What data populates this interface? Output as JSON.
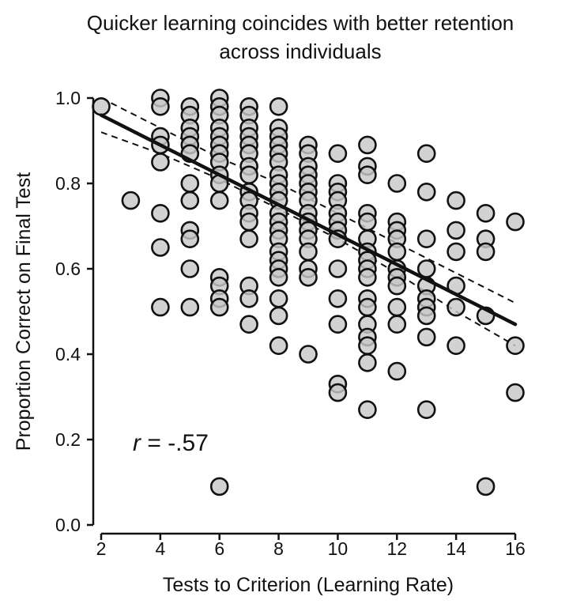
{
  "chart_data": {
    "type": "scatter",
    "title": [
      "Quicker learning coincides with better retention",
      "across individuals"
    ],
    "xlabel": "Tests to Criterion (Learning Rate)",
    "ylabel": "Proportion Correct on Final Test",
    "xlim": [
      2,
      16
    ],
    "ylim": [
      0,
      1.0
    ],
    "xticks": [
      2,
      4,
      6,
      8,
      10,
      12,
      14,
      16
    ],
    "yticks": [
      0.0,
      0.2,
      0.4,
      0.6,
      0.8,
      1.0
    ],
    "ytick_labels": [
      "0.0",
      "0.2",
      "0.4",
      "0.6",
      "0.8",
      "1.0"
    ],
    "annotation": {
      "italic": "r",
      "rest": " = -.57"
    },
    "grid": false,
    "colors": {
      "point_fill": "#c8c8c8",
      "point_overlap_fill": "#9a9a9a",
      "point_edge": "#111111",
      "line": "#111111"
    },
    "regression": {
      "x": [
        2,
        16
      ],
      "y": [
        0.96,
        0.47
      ]
    },
    "confidence_band": {
      "upper": {
        "x": [
          2,
          4,
          6,
          8,
          10,
          12,
          14,
          16
        ],
        "y": [
          1.0,
          0.93,
          0.86,
          0.8,
          0.73,
          0.66,
          0.59,
          0.52
        ]
      },
      "lower": {
        "x": [
          2,
          4,
          6,
          8,
          10,
          12,
          14,
          16
        ],
        "y": [
          0.92,
          0.87,
          0.81,
          0.74,
          0.67,
          0.59,
          0.5,
          0.42
        ]
      }
    },
    "points": [
      {
        "x": 2,
        "y": 0.98
      },
      {
        "x": 3,
        "y": 0.76
      },
      {
        "x": 4,
        "y": 1.0
      },
      {
        "x": 4,
        "y": 0.98
      },
      {
        "x": 4,
        "y": 0.91
      },
      {
        "x": 4,
        "y": 0.89
      },
      {
        "x": 4,
        "y": 0.85
      },
      {
        "x": 4,
        "y": 0.73
      },
      {
        "x": 4,
        "y": 0.65
      },
      {
        "x": 4,
        "y": 0.51
      },
      {
        "x": 5,
        "y": 0.98
      },
      {
        "x": 5,
        "y": 0.96
      },
      {
        "x": 5,
        "y": 0.93
      },
      {
        "x": 5,
        "y": 0.91
      },
      {
        "x": 5,
        "y": 0.89
      },
      {
        "x": 5,
        "y": 0.87
      },
      {
        "x": 5,
        "y": 0.8
      },
      {
        "x": 5,
        "y": 0.76
      },
      {
        "x": 5,
        "y": 0.69
      },
      {
        "x": 5,
        "y": 0.67
      },
      {
        "x": 5,
        "y": 0.6
      },
      {
        "x": 5,
        "y": 0.51
      },
      {
        "x": 6,
        "y": 1.0
      },
      {
        "x": 6,
        "y": 0.98
      },
      {
        "x": 6,
        "y": 0.96
      },
      {
        "x": 6,
        "y": 0.93
      },
      {
        "x": 6,
        "y": 0.91
      },
      {
        "x": 6,
        "y": 0.89
      },
      {
        "x": 6,
        "y": 0.87
      },
      {
        "x": 6,
        "y": 0.85
      },
      {
        "x": 6,
        "y": 0.82
      },
      {
        "x": 6,
        "y": 0.8
      },
      {
        "x": 6,
        "y": 0.76
      },
      {
        "x": 6,
        "y": 0.58
      },
      {
        "x": 6,
        "y": 0.56
      },
      {
        "x": 6,
        "y": 0.53
      },
      {
        "x": 6,
        "y": 0.51
      },
      {
        "x": 6,
        "y": 0.09
      },
      {
        "x": 7,
        "y": 0.98
      },
      {
        "x": 7,
        "y": 0.96
      },
      {
        "x": 7,
        "y": 0.93
      },
      {
        "x": 7,
        "y": 0.91
      },
      {
        "x": 7,
        "y": 0.89
      },
      {
        "x": 7,
        "y": 0.87
      },
      {
        "x": 7,
        "y": 0.84
      },
      {
        "x": 7,
        "y": 0.82
      },
      {
        "x": 7,
        "y": 0.78
      },
      {
        "x": 7,
        "y": 0.76
      },
      {
        "x": 7,
        "y": 0.73
      },
      {
        "x": 7,
        "y": 0.71
      },
      {
        "x": 7,
        "y": 0.67
      },
      {
        "x": 7,
        "y": 0.56
      },
      {
        "x": 7,
        "y": 0.53
      },
      {
        "x": 7,
        "y": 0.47
      },
      {
        "x": 8,
        "y": 0.98
      },
      {
        "x": 8,
        "y": 0.93
      },
      {
        "x": 8,
        "y": 0.91
      },
      {
        "x": 8,
        "y": 0.89
      },
      {
        "x": 8,
        "y": 0.87
      },
      {
        "x": 8,
        "y": 0.85
      },
      {
        "x": 8,
        "y": 0.82
      },
      {
        "x": 8,
        "y": 0.8
      },
      {
        "x": 8,
        "y": 0.78
      },
      {
        "x": 8,
        "y": 0.76
      },
      {
        "x": 8,
        "y": 0.73
      },
      {
        "x": 8,
        "y": 0.71
      },
      {
        "x": 8,
        "y": 0.69
      },
      {
        "x": 8,
        "y": 0.67
      },
      {
        "x": 8,
        "y": 0.64
      },
      {
        "x": 8,
        "y": 0.62
      },
      {
        "x": 8,
        "y": 0.6
      },
      {
        "x": 8,
        "y": 0.58
      },
      {
        "x": 8,
        "y": 0.53
      },
      {
        "x": 8,
        "y": 0.49
      },
      {
        "x": 8,
        "y": 0.42
      },
      {
        "x": 9,
        "y": 0.89
      },
      {
        "x": 9,
        "y": 0.87
      },
      {
        "x": 9,
        "y": 0.84
      },
      {
        "x": 9,
        "y": 0.82
      },
      {
        "x": 9,
        "y": 0.8
      },
      {
        "x": 9,
        "y": 0.78
      },
      {
        "x": 9,
        "y": 0.76
      },
      {
        "x": 9,
        "y": 0.73
      },
      {
        "x": 9,
        "y": 0.71
      },
      {
        "x": 9,
        "y": 0.69
      },
      {
        "x": 9,
        "y": 0.67
      },
      {
        "x": 9,
        "y": 0.64
      },
      {
        "x": 9,
        "y": 0.6
      },
      {
        "x": 9,
        "y": 0.58
      },
      {
        "x": 9,
        "y": 0.4
      },
      {
        "x": 10,
        "y": 0.87
      },
      {
        "x": 10,
        "y": 0.8
      },
      {
        "x": 10,
        "y": 0.78
      },
      {
        "x": 10,
        "y": 0.76
      },
      {
        "x": 10,
        "y": 0.73
      },
      {
        "x": 10,
        "y": 0.71
      },
      {
        "x": 10,
        "y": 0.69
      },
      {
        "x": 10,
        "y": 0.67
      },
      {
        "x": 10,
        "y": 0.6
      },
      {
        "x": 10,
        "y": 0.53
      },
      {
        "x": 10,
        "y": 0.47
      },
      {
        "x": 10,
        "y": 0.33
      },
      {
        "x": 10,
        "y": 0.31
      },
      {
        "x": 11,
        "y": 0.89
      },
      {
        "x": 11,
        "y": 0.84
      },
      {
        "x": 11,
        "y": 0.82
      },
      {
        "x": 11,
        "y": 0.73
      },
      {
        "x": 11,
        "y": 0.71
      },
      {
        "x": 11,
        "y": 0.67
      },
      {
        "x": 11,
        "y": 0.64
      },
      {
        "x": 11,
        "y": 0.62
      },
      {
        "x": 11,
        "y": 0.6
      },
      {
        "x": 11,
        "y": 0.58
      },
      {
        "x": 11,
        "y": 0.53
      },
      {
        "x": 11,
        "y": 0.51
      },
      {
        "x": 11,
        "y": 0.47
      },
      {
        "x": 11,
        "y": 0.44
      },
      {
        "x": 11,
        "y": 0.42
      },
      {
        "x": 11,
        "y": 0.38
      },
      {
        "x": 11,
        "y": 0.27
      },
      {
        "x": 12,
        "y": 0.8
      },
      {
        "x": 12,
        "y": 0.71
      },
      {
        "x": 12,
        "y": 0.69
      },
      {
        "x": 12,
        "y": 0.67
      },
      {
        "x": 12,
        "y": 0.64
      },
      {
        "x": 12,
        "y": 0.6
      },
      {
        "x": 12,
        "y": 0.58
      },
      {
        "x": 12,
        "y": 0.56
      },
      {
        "x": 12,
        "y": 0.51
      },
      {
        "x": 12,
        "y": 0.47
      },
      {
        "x": 12,
        "y": 0.36
      },
      {
        "x": 13,
        "y": 0.87
      },
      {
        "x": 13,
        "y": 0.78
      },
      {
        "x": 13,
        "y": 0.67
      },
      {
        "x": 13,
        "y": 0.6
      },
      {
        "x": 13,
        "y": 0.56
      },
      {
        "x": 13,
        "y": 0.53
      },
      {
        "x": 13,
        "y": 0.51
      },
      {
        "x": 13,
        "y": 0.49
      },
      {
        "x": 13,
        "y": 0.44
      },
      {
        "x": 13,
        "y": 0.27
      },
      {
        "x": 14,
        "y": 0.76
      },
      {
        "x": 14,
        "y": 0.69
      },
      {
        "x": 14,
        "y": 0.64
      },
      {
        "x": 14,
        "y": 0.56
      },
      {
        "x": 14,
        "y": 0.51
      },
      {
        "x": 14,
        "y": 0.42
      },
      {
        "x": 15,
        "y": 0.73
      },
      {
        "x": 15,
        "y": 0.67
      },
      {
        "x": 15,
        "y": 0.64
      },
      {
        "x": 15,
        "y": 0.49
      },
      {
        "x": 15,
        "y": 0.09
      },
      {
        "x": 16,
        "y": 0.71
      },
      {
        "x": 16,
        "y": 0.42
      },
      {
        "x": 16,
        "y": 0.31
      }
    ]
  }
}
